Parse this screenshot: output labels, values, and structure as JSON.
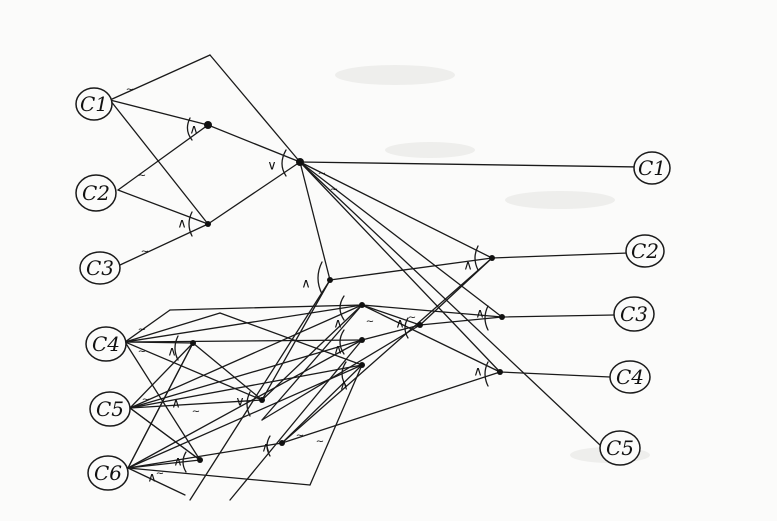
{
  "inputs": [
    "C1",
    "C2",
    "C3",
    "C4",
    "C5",
    "C6"
  ],
  "outputs": [
    "C1",
    "C2",
    "C3",
    "C4",
    "C5"
  ],
  "gate_marks": {
    "and": "∧",
    "or": "∨",
    "tilde": "~"
  }
}
